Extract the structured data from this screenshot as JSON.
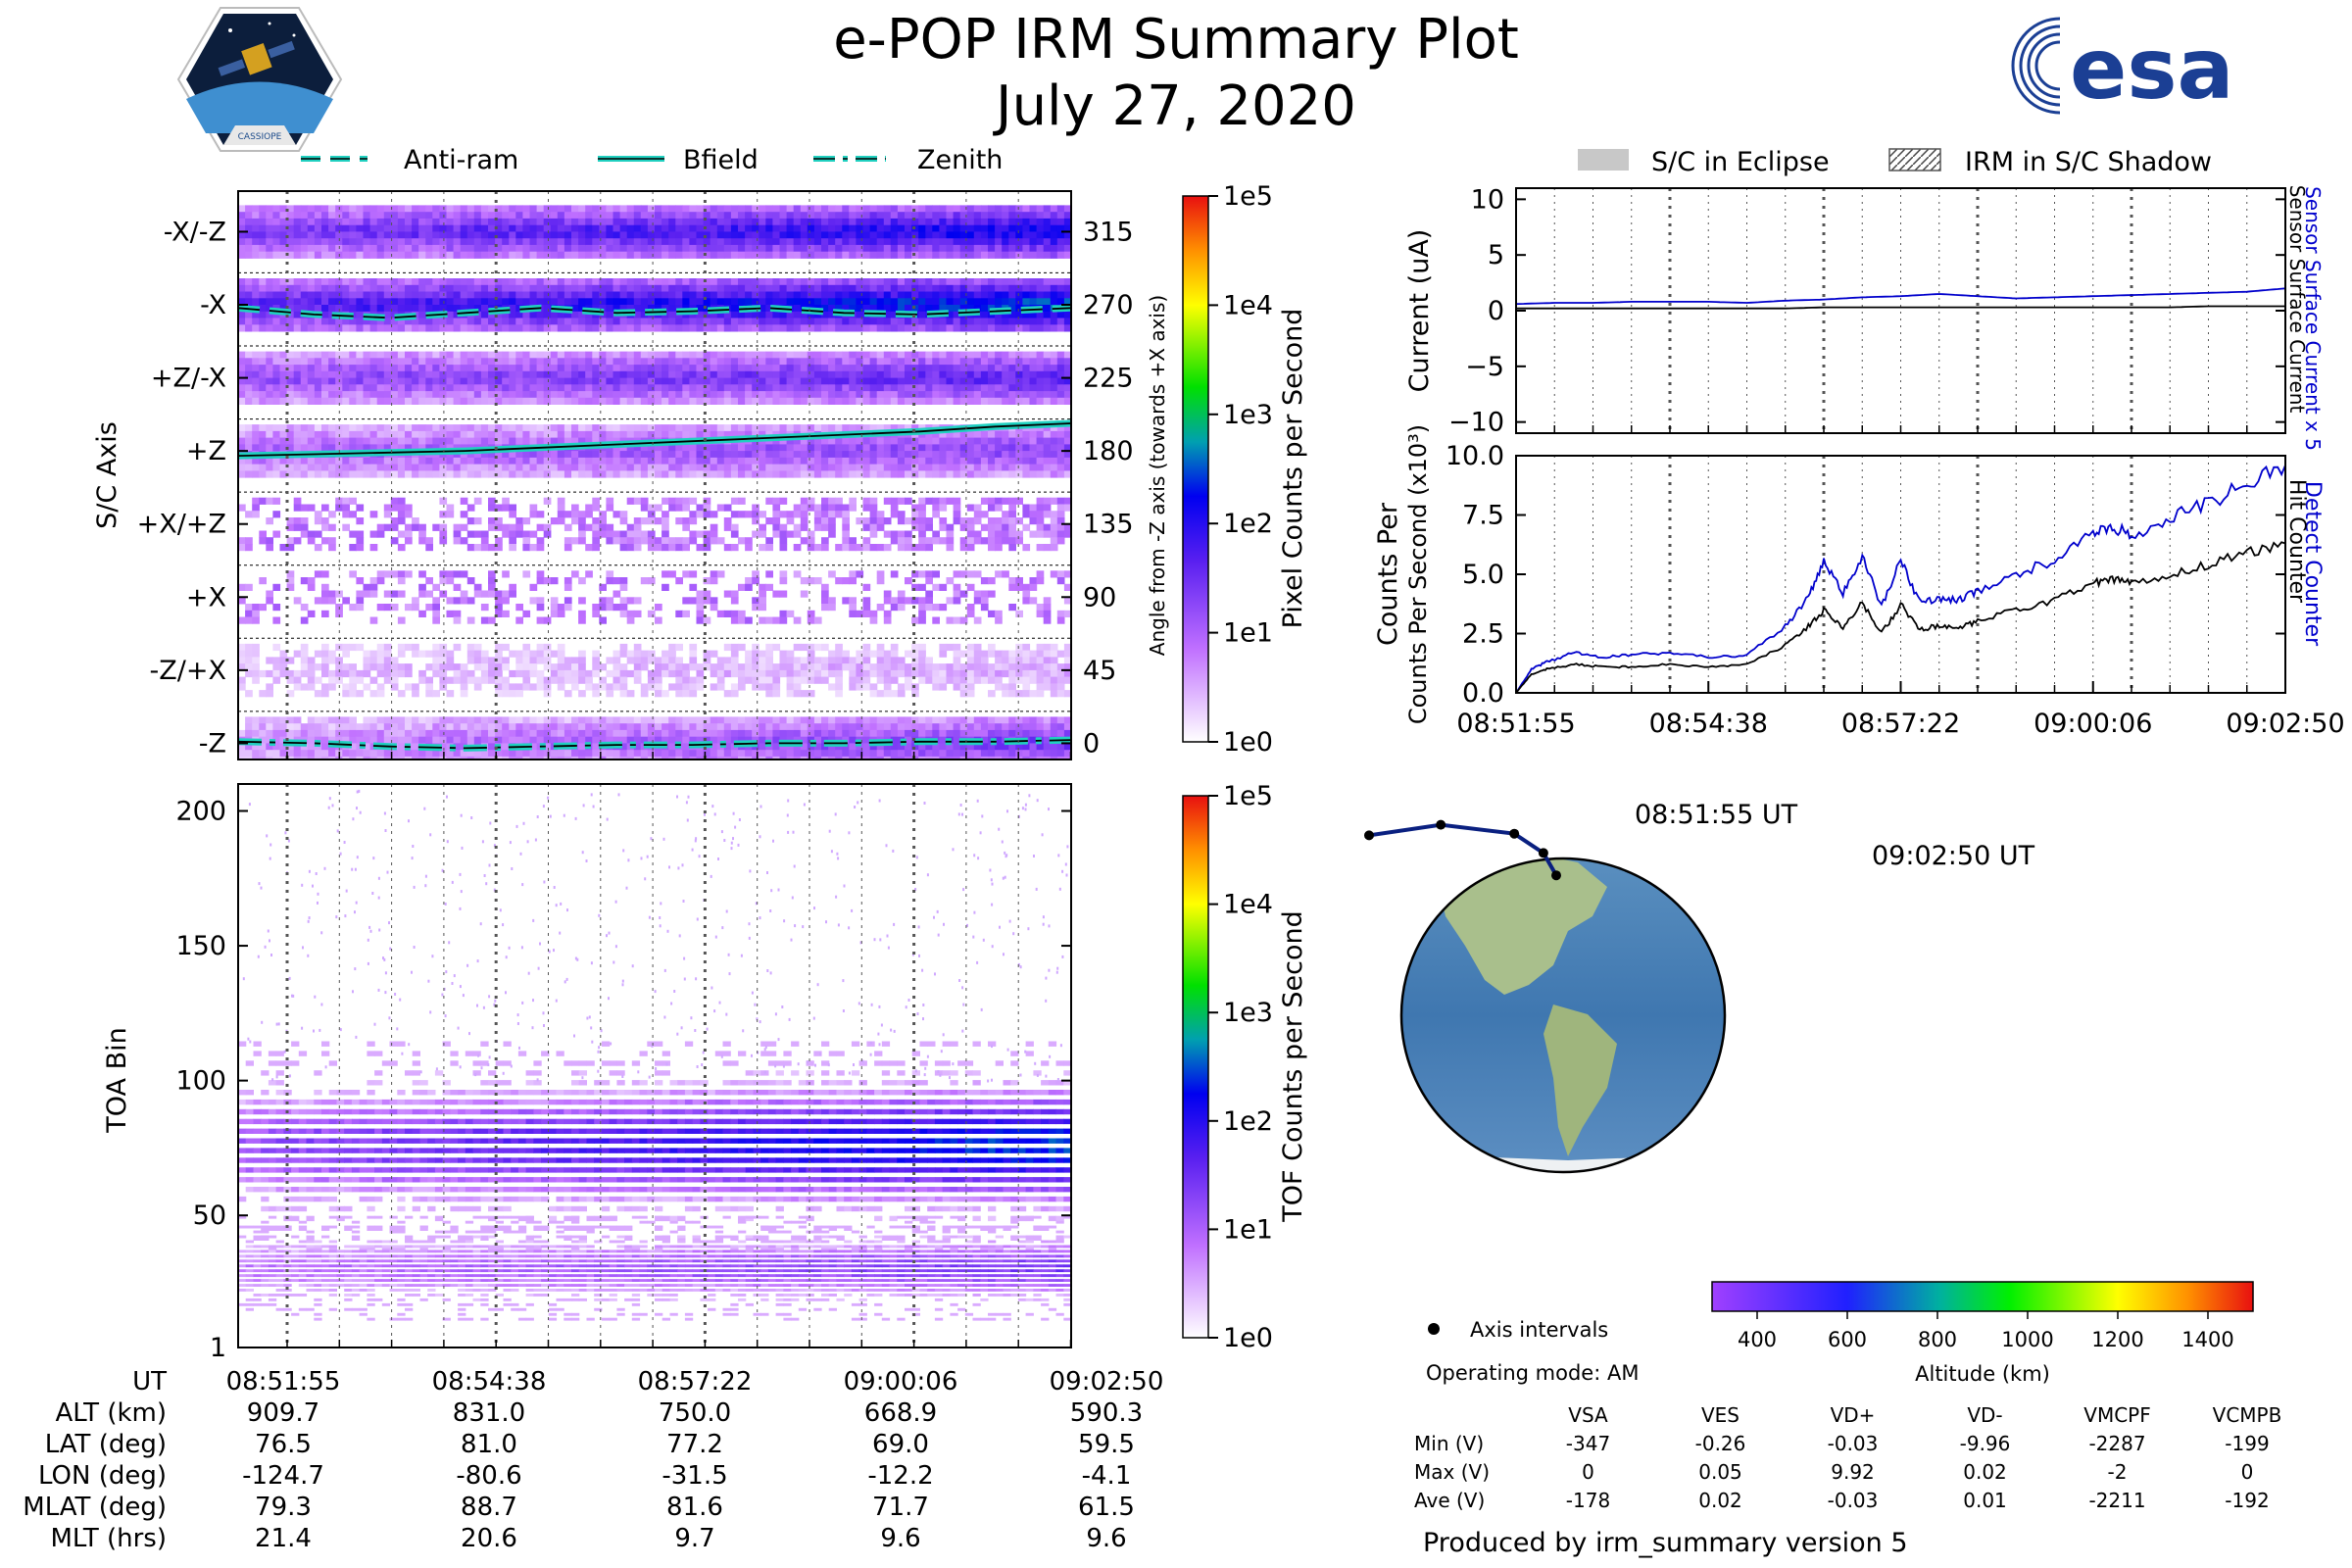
{
  "header": {
    "title": "e-POP IRM Summary Plot",
    "date": "July 27, 2020",
    "logo_cassiope_text": "CASSIOPE",
    "logo_esa_text": "esa"
  },
  "legend_top_left": [
    {
      "label": "Anti-ram",
      "style": "dashed"
    },
    {
      "label": "Bfield",
      "style": "solid"
    },
    {
      "label": "Zenith",
      "style": "dashdot"
    }
  ],
  "legend_top_right": [
    {
      "label": "S/C in Eclipse",
      "style": "filled"
    },
    {
      "label": "IRM in S/C Shadow",
      "style": "hatched"
    }
  ],
  "colors": {
    "line_cyan": "#20d0c0",
    "current_blue": "#0000cc",
    "eclipse_gray": "#c8c8c8"
  },
  "chart_data": [
    {
      "type": "heatmap",
      "name": "sc_axis_pixel_counts",
      "ylabel": "S/C Axis",
      "ylabel_right": "Angle from -Z axis (towards +X axis)",
      "ytick_labels_left": [
        "-X/-Z",
        "-X",
        "+Z/-X",
        "+Z",
        "+X/+Z",
        "+X",
        "-Z/+X",
        "-Z"
      ],
      "ytick_labels_right": [
        "315",
        "270",
        "225",
        "180",
        "135",
        "90",
        "45",
        "0"
      ],
      "angles": [
        315,
        270,
        225,
        180,
        135,
        90,
        45,
        0
      ],
      "ylim": [
        -10,
        340
      ],
      "band_intensity": [
        {
          "angle": 315,
          "start": 1.4,
          "end": 2.3
        },
        {
          "angle": 270,
          "start": 1.7,
          "end": 2.6
        },
        {
          "angle": 225,
          "start": 1.2,
          "end": 1.7
        },
        {
          "angle": 180,
          "start": 1.0,
          "end": 1.3
        },
        {
          "angle": 135,
          "start": 0.05,
          "end": 0.4
        },
        {
          "angle": 90,
          "start": 0.0,
          "end": 0.05
        },
        {
          "angle": 45,
          "start": 0.35,
          "end": 0.5
        },
        {
          "angle": 0,
          "start": 0.7,
          "end": 1.5
        }
      ],
      "lines": [
        {
          "name": "Anti-ram",
          "style": "dashed",
          "values": [
            268,
            264,
            262,
            265,
            268,
            265,
            266,
            268,
            265,
            264,
            266,
            268
          ]
        },
        {
          "name": "Bfield",
          "style": "solid",
          "values": [
            177,
            178,
            179,
            180,
            182,
            184,
            186,
            188,
            190,
            192,
            195,
            197
          ]
        },
        {
          "name": "Zenith",
          "style": "dashdot",
          "values": [
            1,
            0,
            -2,
            -3,
            -2,
            -1,
            -1,
            0,
            0,
            1,
            1,
            2
          ]
        }
      ],
      "colorbar": {
        "label": "Pixel Counts per Second",
        "ticks": [
          "1e5",
          "1e4",
          "1e3",
          "1e2",
          "1e1",
          "1e0"
        ]
      }
    },
    {
      "type": "heatmap",
      "name": "tof_counts",
      "ylabel": "TOA Bin",
      "yticks": [
        "1",
        "50",
        "100",
        "150",
        "200"
      ],
      "ylim": [
        1,
        210
      ],
      "bands": [
        {
          "center": 75,
          "half_width": 18,
          "start_intensity": 0.9,
          "end_intensity": 1.9
        },
        {
          "center": 30,
          "half_width": 9,
          "start_intensity": 0.6,
          "end_intensity": 1.1
        }
      ],
      "colorbar": {
        "label": "TOF Counts per Second",
        "ticks": [
          "1e5",
          "1e4",
          "1e3",
          "1e2",
          "1e1",
          "1e0"
        ]
      }
    },
    {
      "type": "line",
      "name": "current",
      "ylabel": "Current (uA)",
      "ylabel_right_blue": "Sensor Surface Current x 5",
      "ylabel_right_black": "Sensor Surface Current",
      "yticks": [
        "10",
        "5",
        "0",
        "−5",
        "−10"
      ],
      "ylim": [
        -11,
        11
      ],
      "x": [
        0,
        1,
        2,
        3,
        4,
        5,
        6,
        7,
        8,
        9,
        10,
        11,
        12,
        13,
        14,
        15,
        16,
        17,
        18,
        19,
        20
      ],
      "series": [
        {
          "name": "Sensor Surface Current x 5",
          "color": "#0000cc",
          "values": [
            0.6,
            0.7,
            0.7,
            0.8,
            0.8,
            0.8,
            0.7,
            0.9,
            1.0,
            1.2,
            1.3,
            1.5,
            1.3,
            1.1,
            1.2,
            1.3,
            1.4,
            1.5,
            1.6,
            1.7,
            2.0
          ]
        },
        {
          "name": "Sensor Surface Current",
          "color": "#000000",
          "values": [
            0.2,
            0.2,
            0.2,
            0.2,
            0.2,
            0.2,
            0.2,
            0.2,
            0.3,
            0.3,
            0.3,
            0.3,
            0.3,
            0.3,
            0.3,
            0.3,
            0.3,
            0.3,
            0.4,
            0.4,
            0.4
          ]
        }
      ]
    },
    {
      "type": "line",
      "name": "counts",
      "ylabel": "Counts Per Second (x10³)",
      "ylabel_right_blue": "Detect Counter",
      "ylabel_right_black": "Hit Counter",
      "yticks": [
        "10.0",
        "7.5",
        "5.0",
        "2.5",
        "0.0"
      ],
      "ylim": [
        0,
        10
      ],
      "xticks": [
        "08:51:55",
        "08:54:38",
        "08:57:22",
        "09:00:06",
        "09:02:50"
      ],
      "x": [
        0,
        0.4,
        0.8,
        1.5,
        2.2,
        3,
        4,
        5,
        6,
        7,
        7.6,
        8,
        8.5,
        9,
        9.5,
        10,
        10.5,
        11,
        11.5,
        12,
        13,
        14,
        15,
        15.5,
        16,
        17,
        18,
        19,
        20
      ],
      "series": [
        {
          "name": "Detect Counter",
          "color": "#0000cc",
          "values": [
            0.0,
            1.0,
            1.3,
            1.7,
            1.5,
            1.6,
            1.7,
            1.5,
            1.6,
            2.8,
            4.0,
            5.5,
            4.2,
            5.8,
            3.6,
            5.6,
            3.8,
            4.0,
            3.9,
            4.3,
            5.0,
            5.6,
            6.7,
            7.0,
            6.6,
            7.4,
            8.0,
            8.8,
            9.6
          ]
        },
        {
          "name": "Hit Counter",
          "color": "#000000",
          "values": [
            0.0,
            0.8,
            1.0,
            1.2,
            1.1,
            1.1,
            1.2,
            1.1,
            1.2,
            2.0,
            2.8,
            3.5,
            2.8,
            3.8,
            2.5,
            3.7,
            2.7,
            2.8,
            2.7,
            3.0,
            3.5,
            3.9,
            4.6,
            4.8,
            4.6,
            5.0,
            5.4,
            5.9,
            6.3
          ]
        }
      ]
    }
  ],
  "time_axis": {
    "labels": [
      "08:51:55",
      "08:54:38",
      "08:57:22",
      "09:00:06",
      "09:02:50"
    ]
  },
  "ephemeris": {
    "rows": [
      {
        "label": "UT",
        "values": [
          "08:51:55",
          "08:54:38",
          "08:57:22",
          "09:00:06",
          "09:02:50"
        ]
      },
      {
        "label": "ALT (km)",
        "values": [
          "909.7",
          "831.0",
          "750.0",
          "668.9",
          "590.3"
        ]
      },
      {
        "label": "LAT (deg)",
        "values": [
          "76.5",
          "81.0",
          "77.2",
          "69.0",
          "59.5"
        ]
      },
      {
        "label": "LON (deg)",
        "values": [
          "-124.7",
          "-80.6",
          "-31.5",
          "-12.2",
          "-4.1"
        ]
      },
      {
        "label": "MLAT (deg)",
        "values": [
          "79.3",
          "88.7",
          "81.6",
          "71.7",
          "61.5"
        ]
      },
      {
        "label": "MLT (hrs)",
        "values": [
          "21.4",
          "20.6",
          "9.7",
          "9.6",
          "9.6"
        ]
      }
    ]
  },
  "map": {
    "start_label": "08:51:55 UT",
    "end_label": "09:02:50 UT",
    "track": [
      {
        "lon": -124.7,
        "lat": 76.5
      },
      {
        "lon": -80.6,
        "lat": 81.0
      },
      {
        "lon": -31.5,
        "lat": 77.2
      },
      {
        "lon": -12.2,
        "lat": 69.0
      },
      {
        "lon": -4.1,
        "lat": 59.5
      }
    ],
    "altitude_colorbar": {
      "label": "Altitude (km)",
      "ticks": [
        "400",
        "600",
        "800",
        "1000",
        "1200",
        "1400"
      ],
      "range": [
        300,
        1500
      ]
    },
    "axis_intervals_label": "Axis intervals",
    "operating_mode": "Operating mode: AM"
  },
  "voltages": {
    "headers": [
      "",
      "VSA",
      "VES",
      "VD+",
      "VD-",
      "VMCPF",
      "VCMPB"
    ],
    "rows": [
      {
        "label": "Min (V)",
        "values": [
          "-347",
          "-0.26",
          "-0.03",
          "-9.96",
          "-2287",
          "-199"
        ]
      },
      {
        "label": "Max (V)",
        "values": [
          "0",
          "0.05",
          "9.92",
          "0.02",
          "-2",
          "0"
        ]
      },
      {
        "label": "Ave (V)",
        "values": [
          "-178",
          "0.02",
          "-0.03",
          "0.01",
          "-2211",
          "-192"
        ]
      }
    ]
  },
  "footer": "Produced by irm_summary version 5"
}
